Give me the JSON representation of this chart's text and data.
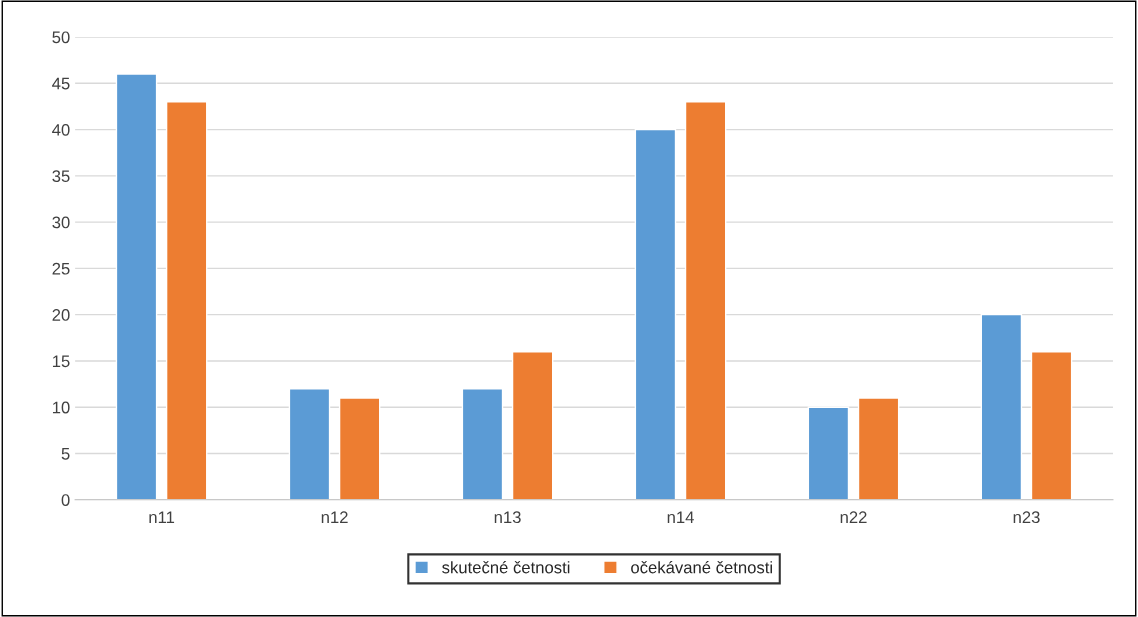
{
  "chart_data": {
    "type": "bar",
    "categories": [
      "n11",
      "n12",
      "n13",
      "n14",
      "n22",
      "n23"
    ],
    "series": [
      {
        "name": "skutečné četnosti",
        "color": "#5b9bd5",
        "values": [
          46,
          12,
          12,
          40,
          10,
          20
        ]
      },
      {
        "name": "očekávané četnosti",
        "color": "#ed7d31",
        "values": [
          43,
          11,
          16,
          43,
          11,
          16
        ]
      }
    ],
    "ylim": [
      0,
      50
    ],
    "yticks": [
      0,
      5,
      10,
      15,
      20,
      25,
      30,
      35,
      40,
      45,
      50
    ],
    "grid": "y",
    "legend": "bottom"
  }
}
